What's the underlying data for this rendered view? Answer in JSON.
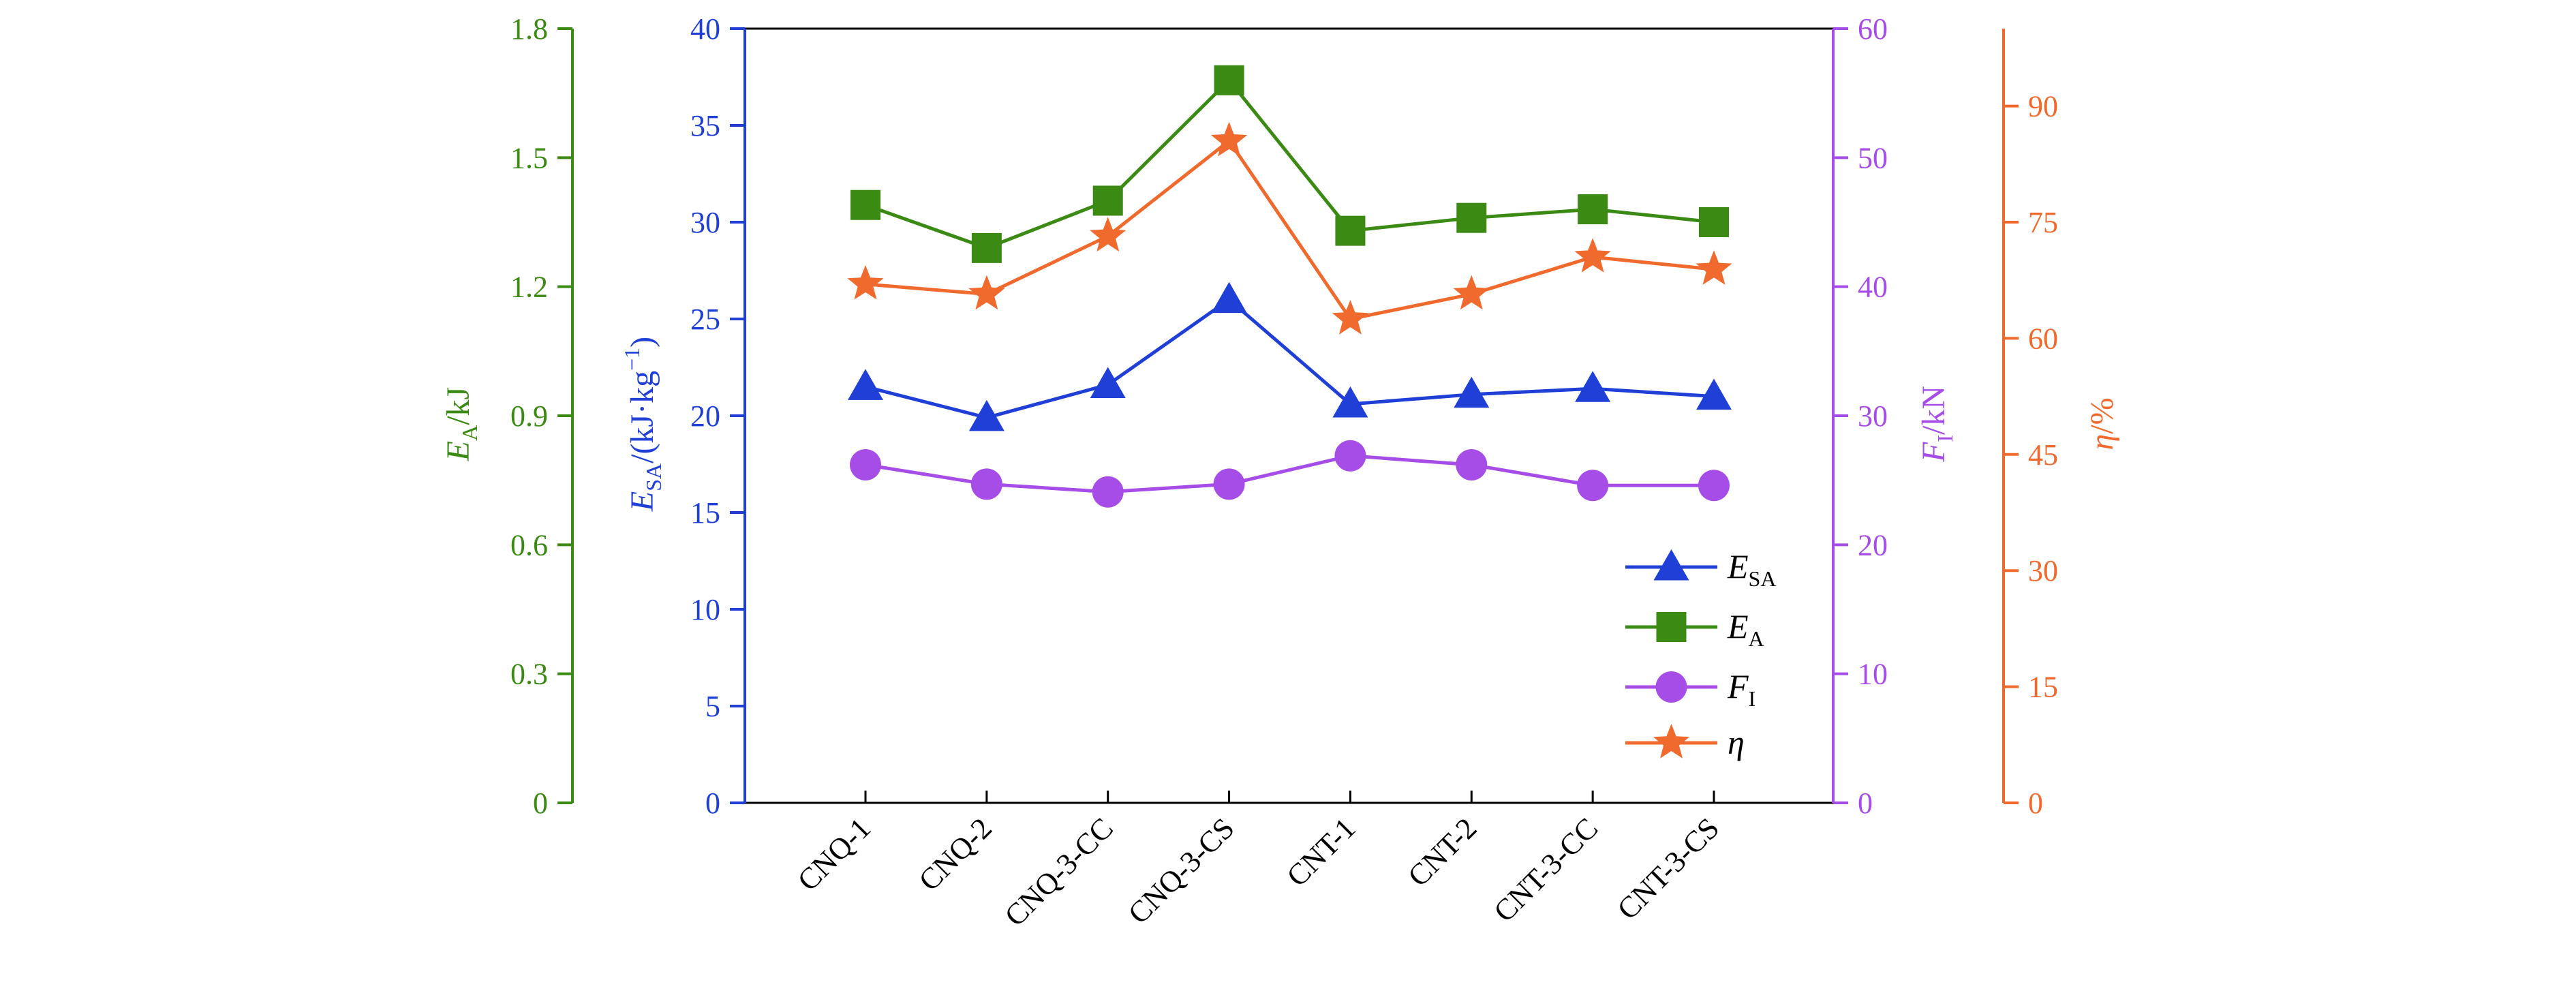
{
  "chart_data": {
    "type": "line",
    "categories": [
      "CNQ-1",
      "CNQ-2",
      "CNQ-3-CC",
      "CNQ-3-CS",
      "CNT-1",
      "CNT-2",
      "CNT-3-CC",
      "CNT-3-CS"
    ],
    "axes": {
      "ea": {
        "label_main": "E",
        "label_sub": "A",
        "label_rest": "/kJ",
        "min": 0,
        "max": 1.8,
        "ticks": [
          "0",
          "0.3",
          "0.6",
          "0.9",
          "1.2",
          "1.5",
          "1.8"
        ],
        "color": "#3a8a14"
      },
      "esa": {
        "label_main": "E",
        "label_sub": "SA",
        "label_rest": "/(kJ·kg",
        "label_sup": "−1",
        "label_close": ")",
        "min": 0,
        "max": 40,
        "ticks": [
          "0",
          "5",
          "10",
          "15",
          "20",
          "25",
          "30",
          "35",
          "40"
        ],
        "color": "#1f3fd6"
      },
      "fi": {
        "label_main": "F",
        "label_sub": "I",
        "label_rest": "/kN",
        "min": 0,
        "max": 60,
        "ticks": [
          "0",
          "10",
          "20",
          "30",
          "40",
          "50",
          "60"
        ],
        "color": "#a64de8"
      },
      "eta": {
        "label_main": "η",
        "label_rest": "/%",
        "min": 0,
        "max": 100,
        "ticks": [
          "0",
          "15",
          "30",
          "45",
          "60",
          "75",
          "90"
        ],
        "color": "#f06a2d"
      }
    },
    "series": [
      {
        "key": "esa",
        "name_main": "E",
        "name_sub": "SA",
        "axis": "esa",
        "marker": "triangle",
        "color": "#1f3fd6",
        "values": [
          21.5,
          19.9,
          21.6,
          26.0,
          20.6,
          21.1,
          21.4,
          21.0
        ]
      },
      {
        "key": "ea",
        "name_main": "E",
        "name_sub": "A",
        "axis": "ea",
        "marker": "square",
        "color": "#3a8a14",
        "values": [
          1.39,
          1.29,
          1.4,
          1.68,
          1.33,
          1.36,
          1.38,
          1.35
        ]
      },
      {
        "key": "fi",
        "name_main": "F",
        "name_sub": "I",
        "axis": "fi",
        "marker": "circle",
        "color": "#a64de8",
        "values": [
          26.2,
          24.7,
          24.1,
          24.7,
          26.9,
          26.2,
          24.6,
          24.6
        ]
      },
      {
        "key": "eta",
        "name_main": "η",
        "name_sub": "",
        "axis": "eta",
        "marker": "star",
        "color": "#f06a2d",
        "values": [
          67,
          65.7,
          73.2,
          85.5,
          62.5,
          65.7,
          70.5,
          68.9
        ]
      }
    ],
    "legend_position": "lower-right"
  }
}
